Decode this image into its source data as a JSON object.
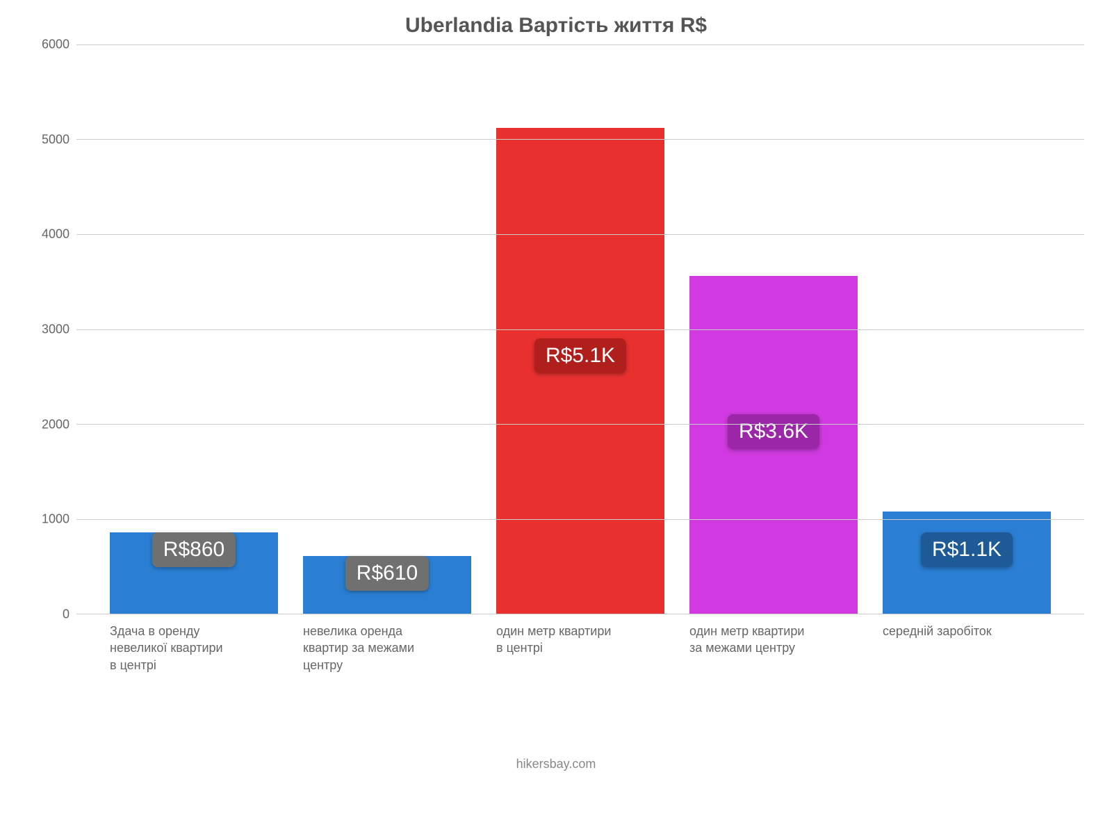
{
  "chart": {
    "type": "bar",
    "title": "Uberlandia Вартість життя R$",
    "title_fontsize": 30,
    "title_color": "#555555",
    "font_family": "Arial",
    "background_color": "#ffffff",
    "grid_color": "#cccccc",
    "axis_label_color": "#666666",
    "axis_label_fontsize": 18,
    "ylim": [
      0,
      6000
    ],
    "ytick_step": 1000,
    "yticks": [
      0,
      1000,
      2000,
      3000,
      4000,
      5000,
      6000
    ],
    "bar_width": 0.72,
    "badge_fontsize": 30,
    "badge_text_color": "#ffffff",
    "badge_radius": 8,
    "categories": [
      "Здача в оренду невеликої квартири в центрі",
      "невелика оренда квартир за межами центру",
      "один метр квартири в центрі",
      "один метр квартири за межами центру",
      "середній заробіток"
    ],
    "values": [
      860,
      610,
      5120,
      3560,
      1080
    ],
    "bar_colors": [
      "#2a7fd4",
      "#2a7fd4",
      "#e8312f",
      "#d03ae0",
      "#2a7fd4"
    ],
    "badge_labels": [
      "R$860",
      "R$610",
      "R$5.1K",
      "R$3.6K",
      "R$1.1K"
    ],
    "badge_bg_colors": [
      "#707070",
      "#707070",
      "#b11f1c",
      "#9b26a8",
      "#1d5a96"
    ],
    "badge_y_values": [
      860,
      610,
      2900,
      2100,
      860
    ],
    "source": "hikersbay.com"
  }
}
